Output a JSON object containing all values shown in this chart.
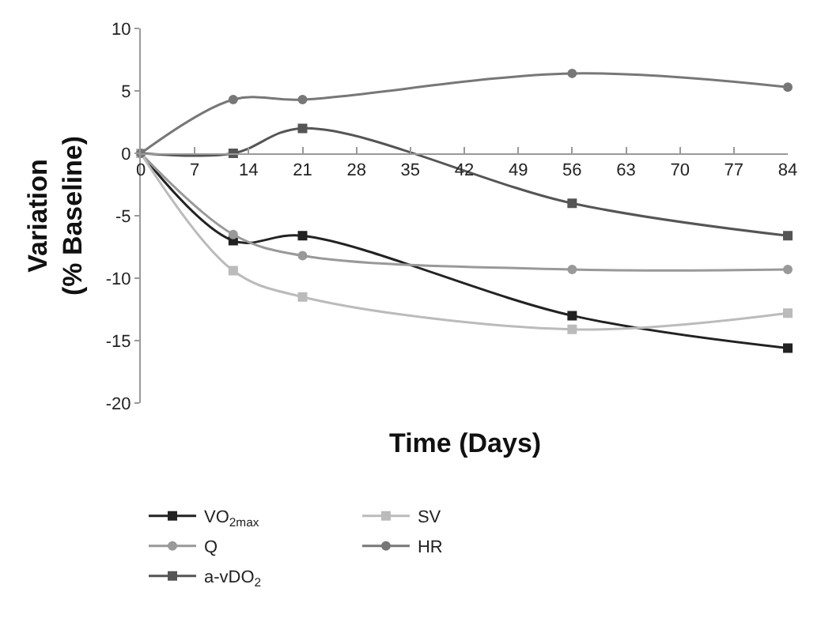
{
  "chart_data": {
    "type": "line",
    "xlabel": "Time (Days)",
    "ylabel": "Variation\n(% Baseline)",
    "x": [
      0,
      12,
      21,
      56,
      84
    ],
    "xlim": [
      0,
      84
    ],
    "xticks": [
      0,
      7,
      14,
      21,
      28,
      35,
      42,
      49,
      56,
      63,
      70,
      77,
      84
    ],
    "ylim": [
      -20,
      10
    ],
    "yticks": [
      -20,
      -15,
      -10,
      -5,
      0,
      5,
      10
    ],
    "legend": "bottom",
    "line_style": "solid",
    "series": [
      {
        "name": "VO$_{2max}$",
        "color": "#222222",
        "marker": "square",
        "values": [
          0,
          -7.0,
          -6.6,
          -13.0,
          -15.6
        ]
      },
      {
        "name": "Q",
        "color": "#999999",
        "marker": "circle",
        "values": [
          0,
          -6.5,
          -8.2,
          -9.3,
          -9.3
        ]
      },
      {
        "name": "a-vDO$_{2}$",
        "color": "#555555",
        "marker": "square",
        "values": [
          0,
          0,
          2.0,
          -4.0,
          -6.6
        ]
      },
      {
        "name": "SV",
        "color": "#bbbbbb",
        "marker": "square",
        "values": [
          0,
          -9.4,
          -11.5,
          -14.1,
          -12.8
        ]
      },
      {
        "name": "HR",
        "color": "#777777",
        "marker": "circle",
        "values": [
          0,
          4.3,
          4.3,
          6.4,
          5.3
        ]
      }
    ]
  }
}
